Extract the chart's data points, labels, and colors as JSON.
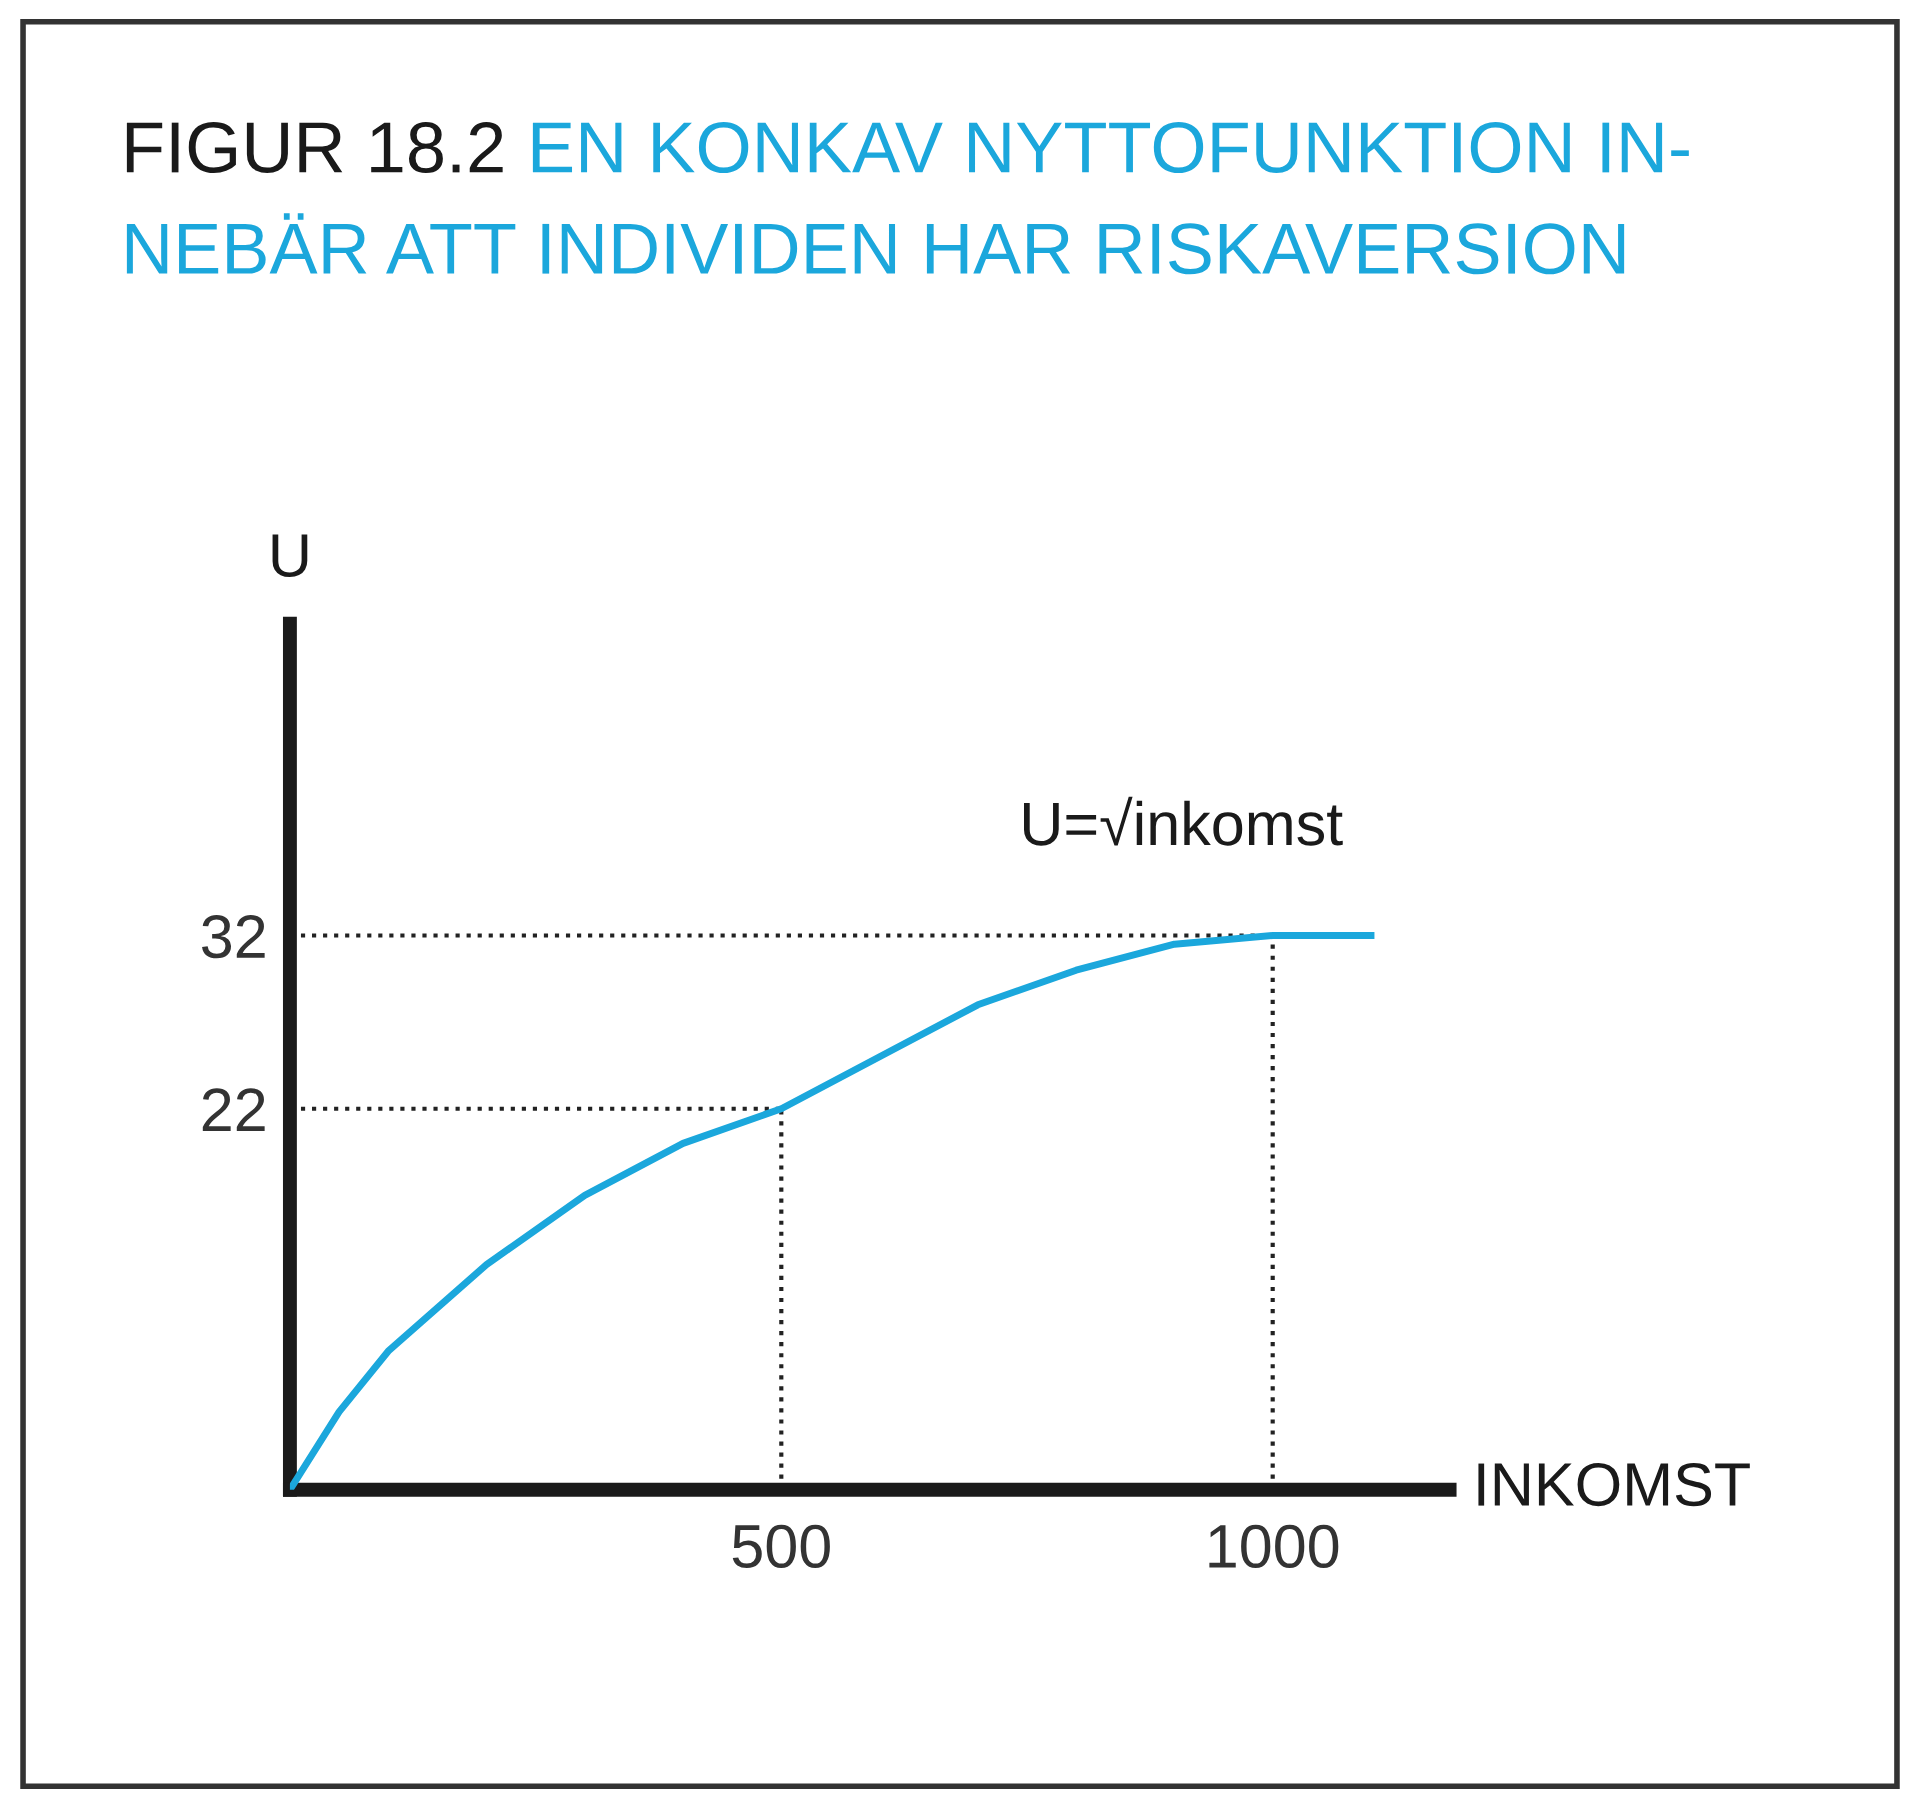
{
  "chart_data": {
    "type": "line",
    "title": "FIGUR 18.2",
    "subtitle": "EN KONKAV NYTTOFUNKTION IN-\nNEBÄR ATT INDIVIDEN HAR RISKAVERSION",
    "xlabel": "INKOMST",
    "ylabel": "U",
    "x": [
      0,
      50,
      100,
      200,
      300,
      400,
      500,
      600,
      700,
      800,
      900,
      1000,
      1100
    ],
    "series": [
      {
        "name": "U=√inkomst",
        "color": "#1ba7dc",
        "values": [
          0,
          4.5,
          8,
          13,
          17,
          20,
          22,
          25,
          28,
          30,
          31.5,
          32,
          32
        ]
      }
    ],
    "xlim": [
      0,
      1180
    ],
    "ylim": [
      0,
      50
    ],
    "xticks": [
      500,
      1000
    ],
    "yticks": [
      22,
      32
    ],
    "ref_lines": [
      {
        "axis": "y",
        "value": 22
      },
      {
        "axis": "y",
        "value": 32
      },
      {
        "axis": "x",
        "value": 500
      },
      {
        "axis": "x",
        "value": 1000
      }
    ],
    "grid": false,
    "legend": false
  }
}
